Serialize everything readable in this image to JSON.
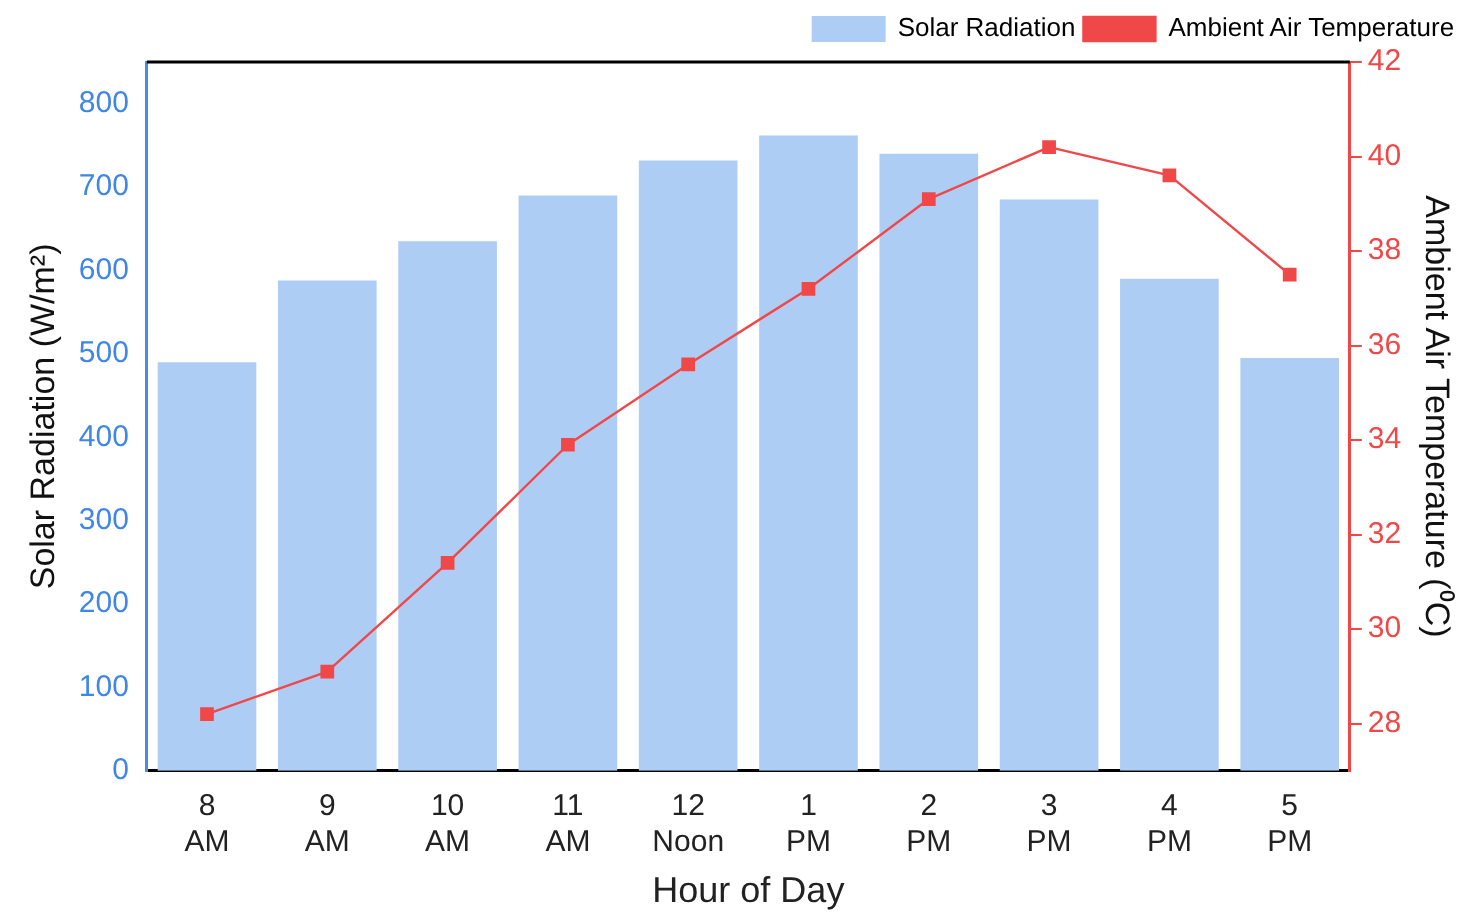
{
  "chart_data": {
    "type": "bar",
    "xlabel": "Hour of Day",
    "ylabel": "Solar Radiation (W/m²)",
    "y2label": "Ambient Air Temperature (⁰C)",
    "categories": [
      "8 AM",
      "9 AM",
      "10 AM",
      "11 AM",
      "12 Noon",
      "1 PM",
      "2 PM",
      "3 PM",
      "4 PM",
      "5 PM"
    ],
    "series": [
      {
        "name": "Solar Radiation",
        "color": "#aecdf5",
        "values": [
          490,
          588,
          635,
          690,
          732,
          762,
          740,
          685,
          590,
          495
        ]
      },
      {
        "name": "Ambient Air Temperature",
        "type": "line",
        "axis": "y2",
        "color": "#f04848",
        "marker": "square",
        "values": [
          28.2,
          29.1,
          31.4,
          33.9,
          35.6,
          37.2,
          39.1,
          40.2,
          39.6,
          37.5
        ]
      }
    ],
    "ylim": [
      0,
      850
    ],
    "yticks": [
      0,
      100,
      200,
      300,
      400,
      500,
      600,
      700,
      800
    ],
    "y2lim": [
      27,
      42
    ],
    "y2ticks": [
      28,
      30,
      32,
      34,
      36,
      38,
      40,
      42
    ],
    "grid": false,
    "legend": "top right"
  }
}
